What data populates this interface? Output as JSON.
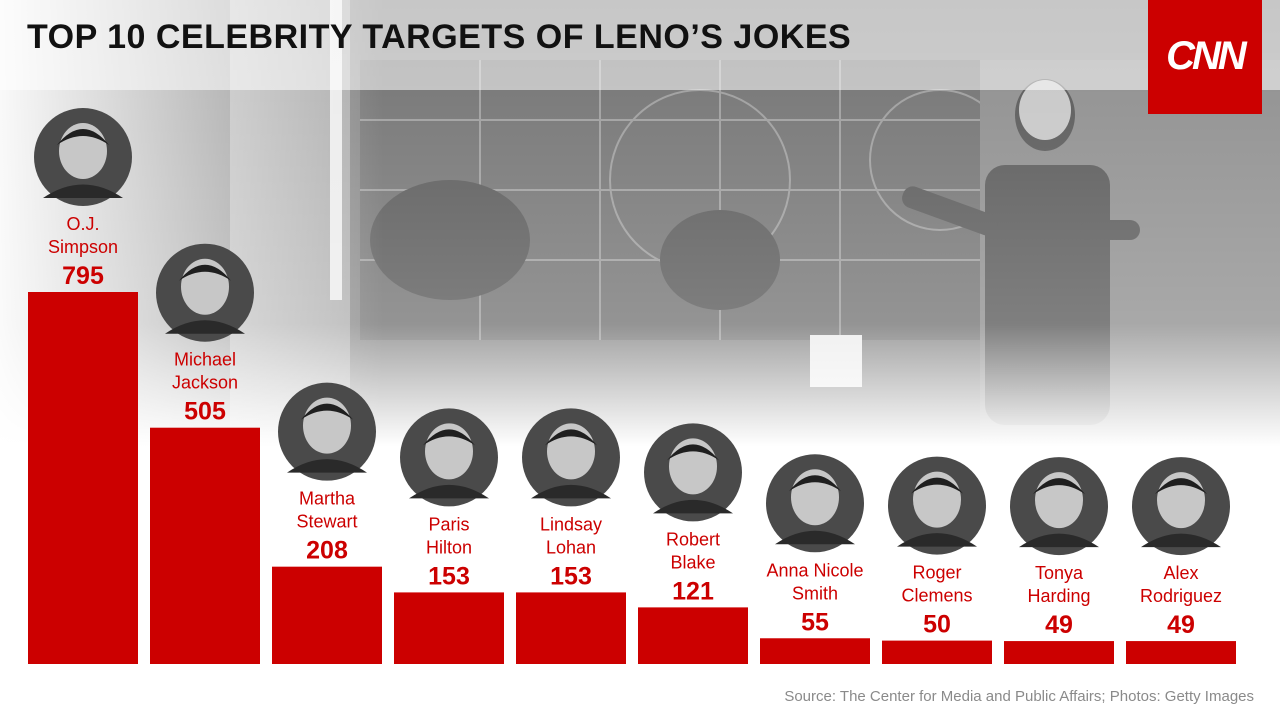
{
  "header": {
    "title": "TOP 10 CELEBRITY TARGETS OF LENO’S JOKES"
  },
  "brand": {
    "logo_text": "CNN",
    "logo_color": "#cc0000"
  },
  "footer": {
    "source": "Source: The Center for Media and Public Affairs; Photos: Getty Images"
  },
  "chart_data": {
    "type": "bar",
    "title": "TOP 10 CELEBRITY TARGETS OF LENO’S JOKES",
    "xlabel": "",
    "ylabel": "",
    "ylim": [
      0,
      800
    ],
    "grid": false,
    "bar_color": "#cc0000",
    "label_color": "#cc0000",
    "categories": [
      [
        "O.J.",
        "Simpson"
      ],
      [
        "Michael",
        "Jackson"
      ],
      [
        "Martha",
        "Stewart"
      ],
      [
        "Paris",
        "Hilton"
      ],
      [
        "Lindsay",
        "Lohan"
      ],
      [
        "Robert",
        "Blake"
      ],
      [
        "Anna Nicole",
        "Smith"
      ],
      [
        "Roger",
        "Clemens"
      ],
      [
        "Tonya",
        "Harding"
      ],
      [
        "Alex",
        "Rodriguez"
      ]
    ],
    "values": [
      795,
      505,
      208,
      153,
      153,
      121,
      55,
      50,
      49,
      49
    ]
  }
}
